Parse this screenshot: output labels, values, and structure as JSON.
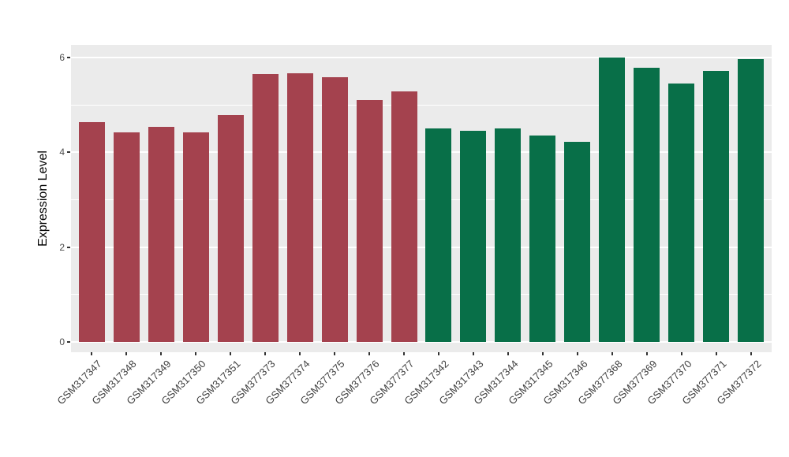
{
  "chart_data": {
    "type": "bar",
    "title": "",
    "xlabel": "",
    "ylabel": "Expression Level",
    "categories": [
      "GSM317347",
      "GSM317348",
      "GSM317349",
      "GSM317350",
      "GSM317351",
      "GSM377373",
      "GSM377374",
      "GSM377375",
      "GSM377376",
      "GSM377377",
      "GSM317342",
      "GSM317343",
      "GSM317344",
      "GSM317345",
      "GSM317346",
      "GSM377368",
      "GSM377369",
      "GSM377370",
      "GSM377371",
      "GSM377372"
    ],
    "values": [
      4.64,
      4.42,
      4.54,
      4.42,
      4.78,
      5.65,
      5.67,
      5.59,
      5.11,
      5.28,
      4.5,
      4.46,
      4.5,
      4.35,
      4.22,
      6.0,
      5.78,
      5.46,
      5.71,
      5.96
    ],
    "bar_colors": [
      "#A4424E",
      "#A4424E",
      "#A4424E",
      "#A4424E",
      "#A4424E",
      "#A4424E",
      "#A4424E",
      "#A4424E",
      "#A4424E",
      "#A4424E",
      "#086F48",
      "#086F48",
      "#086F48",
      "#086F48",
      "#086F48",
      "#086F48",
      "#086F48",
      "#086F48",
      "#086F48",
      "#086F48"
    ],
    "group_colors": {
      "group1": "#A4424E",
      "group2": "#086F48"
    },
    "yticks": [
      0,
      2,
      4,
      6
    ],
    "minor_ticks": [
      1,
      3,
      5
    ],
    "ylim": [
      -0.22,
      6.28
    ],
    "panel_bg": "#EBEBEB",
    "grid_color": "#FFFFFF",
    "axis_text_color": "#4D4D4D",
    "legend": "none",
    "grid": "on"
  }
}
